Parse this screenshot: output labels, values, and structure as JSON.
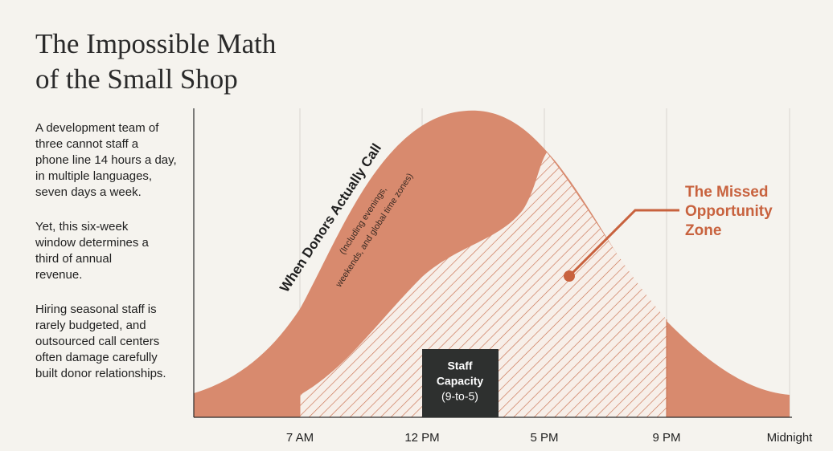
{
  "title": [
    "The Impossible Math",
    "of the Small Shop"
  ],
  "paragraphs": [
    [
      "A development team of",
      "three cannot staff a",
      "phone line 14 hours a day,",
      "in multiple languages,",
      "seven days a week."
    ],
    [
      "Yet, this six-week",
      "window determines a",
      "third of annual",
      "revenue."
    ],
    [
      "Hiring seasonal staff is",
      "rarely budgeted, and",
      "outsourced call centers",
      "often damage carefully",
      "built donor relationships."
    ]
  ],
  "chart_data": {
    "type": "area",
    "x_labels": [
      "7 AM",
      "12 PM",
      "5 PM",
      "9 PM",
      "Midnight"
    ],
    "curve_label": "When Donors Actually Call",
    "curve_note": [
      "(Including evenings,",
      "weekends, and global time zones)"
    ],
    "box_label": [
      "Staff",
      "Capacity",
      "(9-to-5)"
    ],
    "zone_label": [
      "The Missed",
      "Opportunity",
      "Zone"
    ]
  }
}
